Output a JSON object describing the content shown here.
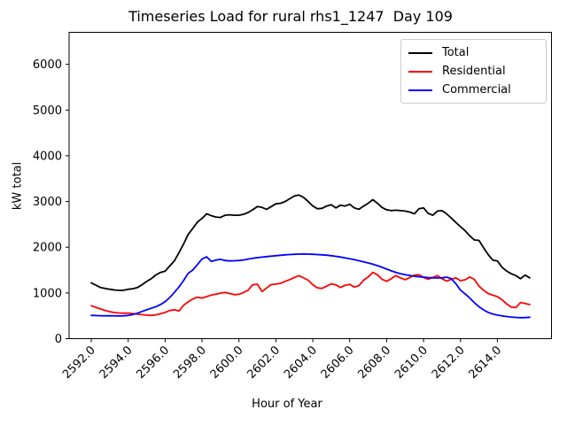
{
  "chart_data": {
    "type": "line",
    "title": "Timeseries Load for rural rhs1_1247  Day 109",
    "xlabel": "Hour of Year",
    "ylabel": "kW total",
    "grid": false,
    "legend_position": "upper right",
    "background_color": "#ffffff",
    "axis_color": "#000000",
    "legend_border_color": "#cccccc",
    "xlim": [
      2590.8,
      2616.93
    ],
    "ylim": [
      0,
      6700
    ],
    "xticks": {
      "values": [
        2592,
        2594,
        2596,
        2598,
        2600,
        2602,
        2604,
        2606,
        2608,
        2610,
        2612,
        2614
      ],
      "labels": [
        "2592.0",
        "2594.0",
        "2596.0",
        "2598.0",
        "2600.0",
        "2602.0",
        "2604.0",
        "2606.0",
        "2608.0",
        "2610.0",
        "2612.0",
        "2614.0"
      ]
    },
    "yticks": {
      "values": [
        0,
        1000,
        2000,
        3000,
        4000,
        5000,
        6000
      ],
      "labels": [
        "0",
        "1000",
        "2000",
        "3000",
        "4000",
        "5000",
        "6000"
      ]
    },
    "x": {
      "start": 2592.0,
      "step": 0.25,
      "count": 96
    },
    "series": [
      {
        "name": "Total",
        "color": "#000000",
        "values": [
          1220,
          1170,
          1120,
          1100,
          1080,
          1065,
          1058,
          1060,
          1080,
          1092,
          1118,
          1180,
          1250,
          1310,
          1395,
          1448,
          1475,
          1590,
          1700,
          1880,
          2070,
          2280,
          2410,
          2550,
          2630,
          2730,
          2690,
          2660,
          2650,
          2700,
          2710,
          2700,
          2700,
          2720,
          2760,
          2820,
          2890,
          2870,
          2830,
          2890,
          2950,
          2960,
          3000,
          3060,
          3120,
          3140,
          3090,
          3000,
          2900,
          2840,
          2850,
          2900,
          2930,
          2860,
          2920,
          2900,
          2940,
          2860,
          2830,
          2900,
          2960,
          3040,
          2960,
          2870,
          2820,
          2800,
          2810,
          2800,
          2790,
          2770,
          2730,
          2840,
          2860,
          2740,
          2700,
          2790,
          2800,
          2730,
          2640,
          2540,
          2450,
          2360,
          2250,
          2160,
          2150,
          1990,
          1840,
          1720,
          1700,
          1560,
          1480,
          1420,
          1380,
          1310,
          1390,
          1330
        ]
      },
      {
        "name": "Residential",
        "color": "#ff0000",
        "values": [
          720,
          685,
          650,
          618,
          590,
          572,
          562,
          557,
          560,
          548,
          535,
          525,
          515,
          510,
          520,
          545,
          575,
          615,
          632,
          605,
          730,
          805,
          868,
          908,
          888,
          920,
          952,
          974,
          995,
          1010,
          988,
          963,
          970,
          1010,
          1062,
          1180,
          1190,
          1030,
          1110,
          1183,
          1192,
          1210,
          1252,
          1292,
          1338,
          1378,
          1330,
          1278,
          1180,
          1112,
          1100,
          1148,
          1198,
          1178,
          1120,
          1168,
          1188,
          1128,
          1160,
          1278,
          1350,
          1448,
          1398,
          1300,
          1255,
          1310,
          1378,
          1330,
          1290,
          1338,
          1388,
          1398,
          1340,
          1300,
          1338,
          1378,
          1310,
          1258,
          1298,
          1328,
          1268,
          1288,
          1348,
          1298,
          1150,
          1060,
          988,
          950,
          920,
          850,
          760,
          690,
          680,
          790,
          770,
          745
        ]
      },
      {
        "name": "Commercial",
        "color": "#0000ff",
        "values": [
          510,
          505,
          502,
          500,
          502,
          500,
          498,
          500,
          508,
          528,
          558,
          595,
          632,
          665,
          700,
          745,
          810,
          900,
          1010,
          1130,
          1270,
          1430,
          1500,
          1620,
          1740,
          1790,
          1690,
          1720,
          1735,
          1710,
          1700,
          1705,
          1710,
          1722,
          1740,
          1758,
          1772,
          1783,
          1795,
          1805,
          1815,
          1825,
          1833,
          1840,
          1846,
          1850,
          1851,
          1849,
          1845,
          1840,
          1834,
          1826,
          1815,
          1801,
          1786,
          1768,
          1748,
          1727,
          1705,
          1681,
          1656,
          1629,
          1597,
          1561,
          1522,
          1483,
          1450,
          1422,
          1400,
          1382,
          1366,
          1354,
          1345,
          1337,
          1331,
          1329,
          1330,
          1345,
          1312,
          1200,
          1062,
          980,
          888,
          788,
          700,
          630,
          575,
          540,
          515,
          498,
          484,
          472,
          464,
          459,
          461,
          468
        ]
      }
    ]
  }
}
